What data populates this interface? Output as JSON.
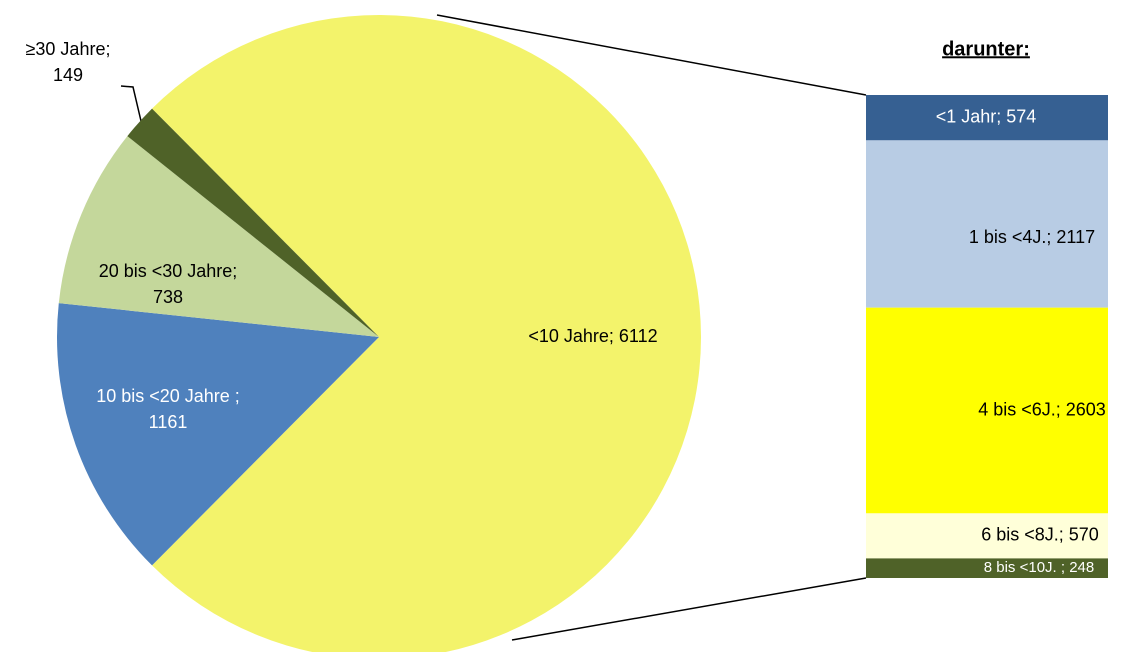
{
  "chart_data": {
    "type": "bar-of-pie",
    "pie": {
      "categories": [
        "<10 Jahre",
        "10 bis <20 Jahre",
        "20 bis <30 Jahre",
        "≥30 Jahre"
      ],
      "values": [
        6112,
        1161,
        738,
        149
      ],
      "value_labels": [
        [
          "<10 Jahre; 6112"
        ],
        [
          "10 bis <20 Jahre ;",
          "1161"
        ],
        [
          "20 bis <30 Jahre;",
          "738"
        ],
        [
          "≥30 Jahre;",
          "149"
        ]
      ],
      "colors": [
        "#f3f36b",
        "#4f81bd",
        "#c4d79b",
        "#4f6228"
      ]
    },
    "bar": {
      "title": "darunter:",
      "categories": [
        "<1 Jahr",
        "1 bis <4J.",
        "4 bis <6J.",
        "6 bis <8J.",
        "8 bis <10J."
      ],
      "values": [
        574,
        2117,
        2603,
        570,
        248
      ],
      "value_labels": [
        "<1 Jahr; 574",
        "1 bis <4J.; 2117",
        "4 bis <6J.; 2603",
        "6 bis <8J.; 570",
        "8 bis <10J. ; 248"
      ],
      "colors": [
        "#366092",
        "#b8cce4",
        "#ffff00",
        "#ffffd9",
        "#4f6228"
      ]
    }
  }
}
